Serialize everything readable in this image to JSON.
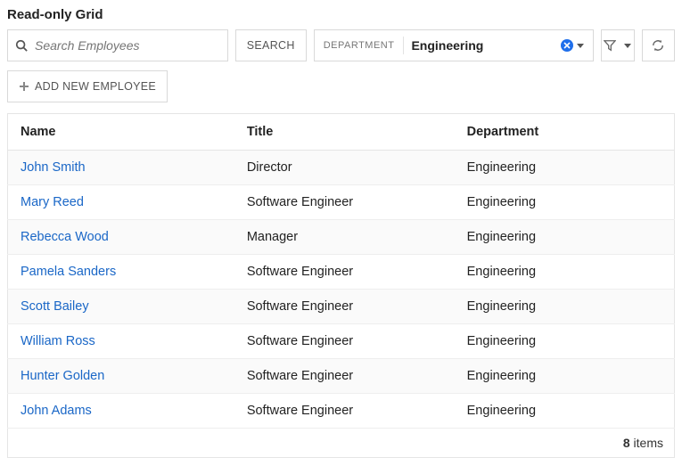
{
  "title": "Read-only Grid",
  "search": {
    "placeholder": "Search Employees",
    "button_label": "SEARCH"
  },
  "filter": {
    "label": "DEPARTMENT",
    "value": "Engineering"
  },
  "add_button_label": "ADD NEW EMPLOYEE",
  "columns": {
    "name": "Name",
    "title": "Title",
    "department": "Department"
  },
  "rows": [
    {
      "name": "John Smith",
      "title": "Director",
      "department": "Engineering"
    },
    {
      "name": "Mary Reed",
      "title": "Software Engineer",
      "department": "Engineering"
    },
    {
      "name": "Rebecca Wood",
      "title": "Manager",
      "department": "Engineering"
    },
    {
      "name": "Pamela Sanders",
      "title": "Software Engineer",
      "department": "Engineering"
    },
    {
      "name": "Scott Bailey",
      "title": "Software Engineer",
      "department": "Engineering"
    },
    {
      "name": "William Ross",
      "title": "Software Engineer",
      "department": "Engineering"
    },
    {
      "name": "Hunter Golden",
      "title": "Software Engineer",
      "department": "Engineering"
    },
    {
      "name": "John Adams",
      "title": "Software Engineer",
      "department": "Engineering"
    }
  ],
  "footer": {
    "count": "8",
    "items_label": "items"
  },
  "colors": {
    "link": "#1a67c7",
    "accent": "#1f6feb",
    "border": "#d9d9d9",
    "row_alt": "#fafafa"
  }
}
